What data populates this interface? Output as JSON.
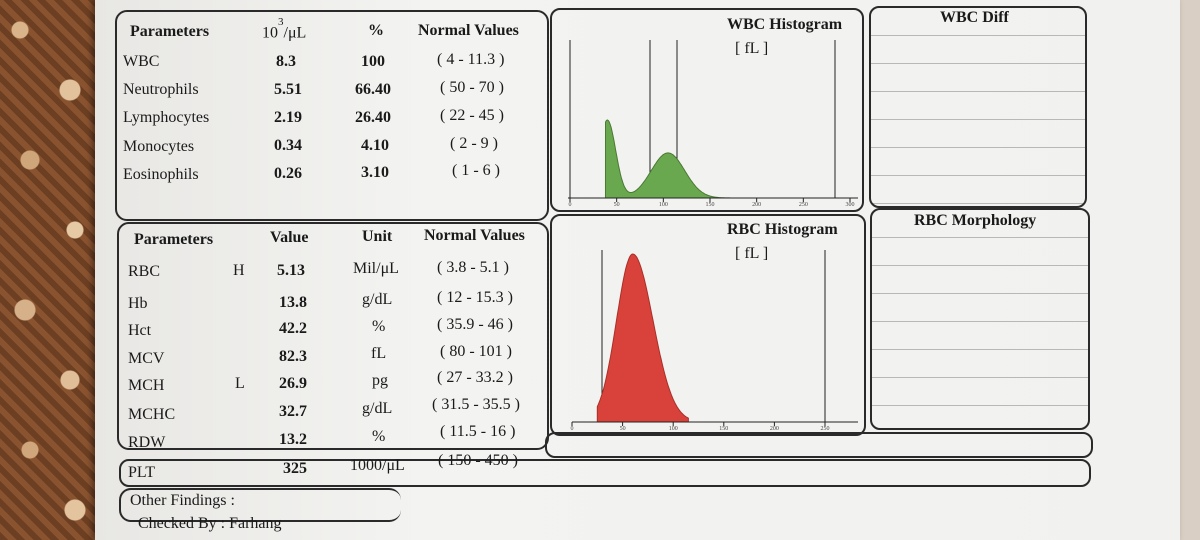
{
  "wbc_table": {
    "headers": {
      "parameters": "Parameters",
      "unit": "10³/μL",
      "percent": "%",
      "normal": "Normal Values"
    },
    "rows": [
      {
        "name": "WBC",
        "abs": "8.3",
        "pct": "100",
        "normal": "( 4 - 11.3 )"
      },
      {
        "name": "Neutrophils",
        "abs": "5.51",
        "pct": "66.40",
        "normal": "( 50 - 70 )"
      },
      {
        "name": "Lymphocytes",
        "abs": "2.19",
        "pct": "26.40",
        "normal": "( 22 - 45 )"
      },
      {
        "name": "Monocytes",
        "abs": "0.34",
        "pct": "4.10",
        "normal": "( 2 - 9 )"
      },
      {
        "name": "Eosinophils",
        "abs": "0.26",
        "pct": "3.10",
        "normal": "( 1 - 6 )"
      }
    ]
  },
  "rbc_table": {
    "headers": {
      "parameters": "Parameters",
      "value": "Value",
      "unit": "Unit",
      "normal": "Normal Values"
    },
    "rows": [
      {
        "name": "RBC",
        "flag": "H",
        "value": "5.13",
        "unit": "Mil/μL",
        "normal": "( 3.8 - 5.1 )"
      },
      {
        "name": "Hb",
        "flag": "",
        "value": "13.8",
        "unit": "g/dL",
        "normal": "( 12 - 15.3 )"
      },
      {
        "name": "Hct",
        "flag": "",
        "value": "42.2",
        "unit": "%",
        "normal": "( 35.9 - 46 )"
      },
      {
        "name": "MCV",
        "flag": "",
        "value": "82.3",
        "unit": "fL",
        "normal": "( 80 - 101 )"
      },
      {
        "name": "MCH",
        "flag": "L",
        "value": "26.9",
        "unit": "pg",
        "normal": "( 27 - 33.2 )"
      },
      {
        "name": "MCHC",
        "flag": "",
        "value": "32.7",
        "unit": "g/dL",
        "normal": "( 31.5 - 35.5 )"
      },
      {
        "name": "RDW",
        "flag": "",
        "value": "13.2",
        "unit": "%",
        "normal": "( 11.5 - 16 )"
      },
      {
        "name": "PLT",
        "flag": "",
        "value": "325",
        "unit": "1000/μL",
        "normal": "( 150 - 450 )"
      }
    ]
  },
  "wbc_hist": {
    "title": "WBC Histogram",
    "unit": "[ fL ]",
    "color": "#6aa84f",
    "ticks": [
      "0",
      "50",
      "100",
      "150",
      "200",
      "250",
      "300"
    ],
    "peaks": [
      {
        "fl": 40,
        "height": 0.95,
        "width": 9
      },
      {
        "fl": 105,
        "height": 0.55,
        "width": 18
      }
    ]
  },
  "rbc_hist": {
    "title": "RBC Histogram",
    "unit": "[ fL ]",
    "color": "#d9423a",
    "ticks": [
      "0",
      "50",
      "100",
      "150",
      "200",
      "250"
    ],
    "peak": {
      "fl": 60,
      "height": 1.0
    }
  },
  "wbc_diff": {
    "title": "WBC Diff"
  },
  "rbc_morph": {
    "title": "RBC Morphology"
  },
  "footer": {
    "other_findings": "Other Findings :",
    "checked_by": "Checked By : Farhang"
  }
}
